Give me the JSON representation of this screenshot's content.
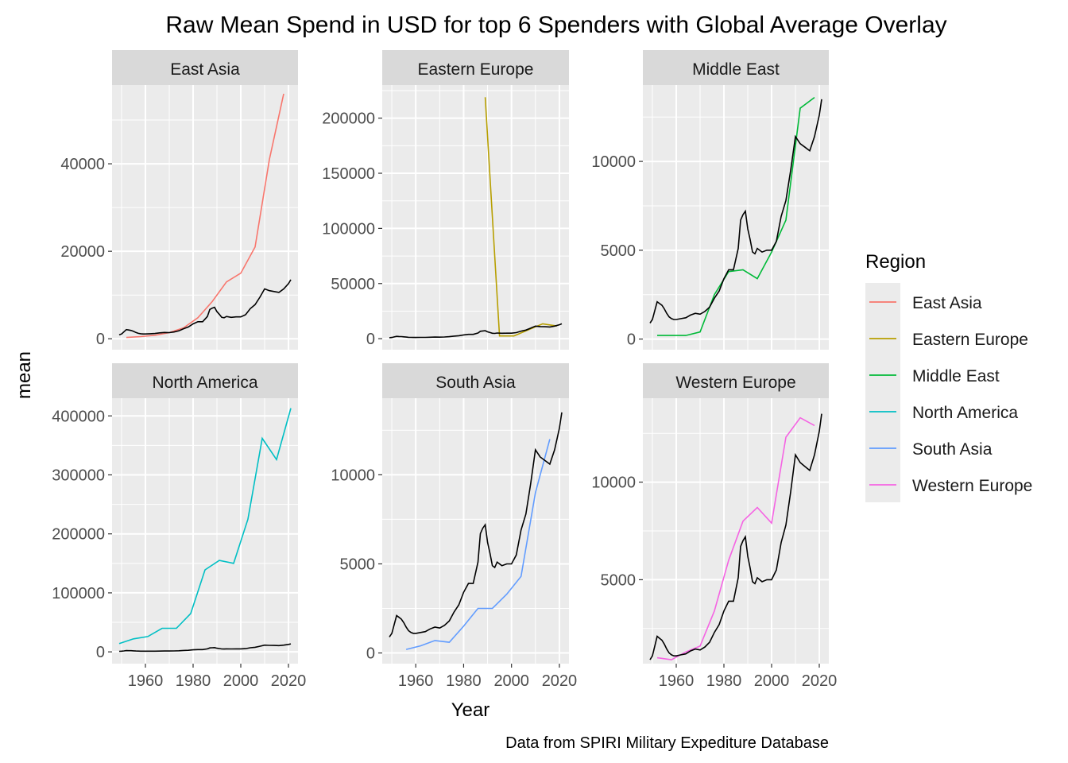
{
  "chart_data": {
    "type": "line",
    "title": "Raw Mean Spend in USD for top 6 Spenders with Global Average Overlay",
    "xlabel": "Year",
    "ylabel": "mean",
    "caption": "Data from SPIRI Military Expediture Database",
    "legend_title": "Region",
    "legend_position": "right",
    "grid": true,
    "x_ticks": [
      1960,
      1980,
      2000,
      2020
    ],
    "xlim": [
      1946,
      2024
    ],
    "global_average": {
      "x": [
        1949,
        1950,
        1951,
        1952,
        1953,
        1954,
        1955,
        1956,
        1957,
        1958,
        1959,
        1960,
        1962,
        1964,
        1966,
        1968,
        1970,
        1972,
        1974,
        1976,
        1978,
        1980,
        1982,
        1984,
        1986,
        1987,
        1988,
        1989,
        1990,
        1991,
        1992,
        1993,
        1994,
        1996,
        1998,
        2000,
        2002,
        2004,
        2006,
        2008,
        2010,
        2012,
        2014,
        2016,
        2018,
        2020,
        2021
      ],
      "y": [
        900,
        1100,
        1600,
        2100,
        2000,
        1900,
        1700,
        1450,
        1250,
        1150,
        1100,
        1100,
        1150,
        1200,
        1350,
        1450,
        1400,
        1550,
        1800,
        2300,
        2700,
        3400,
        3900,
        3900,
        5100,
        6700,
        7000,
        7200,
        6200,
        5600,
        4900,
        4800,
        5100,
        4900,
        5000,
        5000,
        5500,
        6900,
        7800,
        9500,
        11400,
        11000,
        10800,
        10600,
        11400,
        12600,
        13500
      ]
    },
    "panels": [
      {
        "name": "East Asia",
        "color": "#F8766D",
        "ylim": [
          -2500,
          58000
        ],
        "y_ticks": [
          0,
          20000,
          40000
        ],
        "x": [
          1952,
          1958,
          1964,
          1970,
          1976,
          1982,
          1988,
          1994,
          2000,
          2006,
          2012,
          2018
        ],
        "y": [
          300,
          500,
          800,
          1400,
          2500,
          4800,
          8500,
          13000,
          15000,
          21000,
          41000,
          56000
        ]
      },
      {
        "name": "Eastern Europe",
        "color": "#B79F00",
        "ylim": [
          -10000,
          230000
        ],
        "y_ticks": [
          0,
          50000,
          100000,
          150000,
          200000
        ],
        "x": [
          1989,
          1995,
          2001,
          2007,
          2013,
          2019
        ],
        "y": [
          219000,
          2500,
          2500,
          8000,
          13500,
          11500
        ]
      },
      {
        "name": "Middle East",
        "color": "#00BA38",
        "ylim": [
          -600,
          14300
        ],
        "y_ticks": [
          0,
          5000,
          10000
        ],
        "x": [
          1952,
          1958,
          1964,
          1970,
          1976,
          1982,
          1988,
          1994,
          2000,
          2006,
          2012,
          2018
        ],
        "y": [
          200,
          200,
          200,
          400,
          2500,
          3800,
          3900,
          3400,
          4900,
          6700,
          13000,
          13600
        ]
      },
      {
        "name": "North America",
        "color": "#00BFC4",
        "ylim": [
          -20000,
          430000
        ],
        "y_ticks": [
          0,
          100000,
          200000,
          300000,
          400000
        ],
        "x": [
          1949,
          1955,
          1961,
          1967,
          1973,
          1979,
          1985,
          1991,
          1997,
          2003,
          2009,
          2015,
          2021
        ],
        "y": [
          14000,
          22000,
          26000,
          40000,
          40000,
          65000,
          139000,
          155000,
          150000,
          225000,
          362000,
          326000,
          413000
        ]
      },
      {
        "name": "South Asia",
        "color": "#619CFF",
        "ylim": [
          -600,
          14300
        ],
        "y_ticks": [
          0,
          5000,
          10000
        ],
        "x": [
          1956,
          1962,
          1968,
          1974,
          1980,
          1986,
          1992,
          1998,
          2004,
          2010,
          2016
        ],
        "y": [
          200,
          400,
          700,
          600,
          1500,
          2500,
          2500,
          3300,
          4300,
          9000,
          12000
        ]
      },
      {
        "name": "Western Europe",
        "color": "#F564E3",
        "ylim": [
          700,
          14300
        ],
        "y_ticks": [
          5000,
          10000
        ],
        "x": [
          1952,
          1958,
          1964,
          1970,
          1976,
          1982,
          1988,
          1994,
          2000,
          2006,
          2012,
          2018
        ],
        "y": [
          1000,
          900,
          1300,
          1600,
          3400,
          6000,
          8000,
          8700,
          7900,
          12300,
          13300,
          12900
        ]
      }
    ]
  }
}
